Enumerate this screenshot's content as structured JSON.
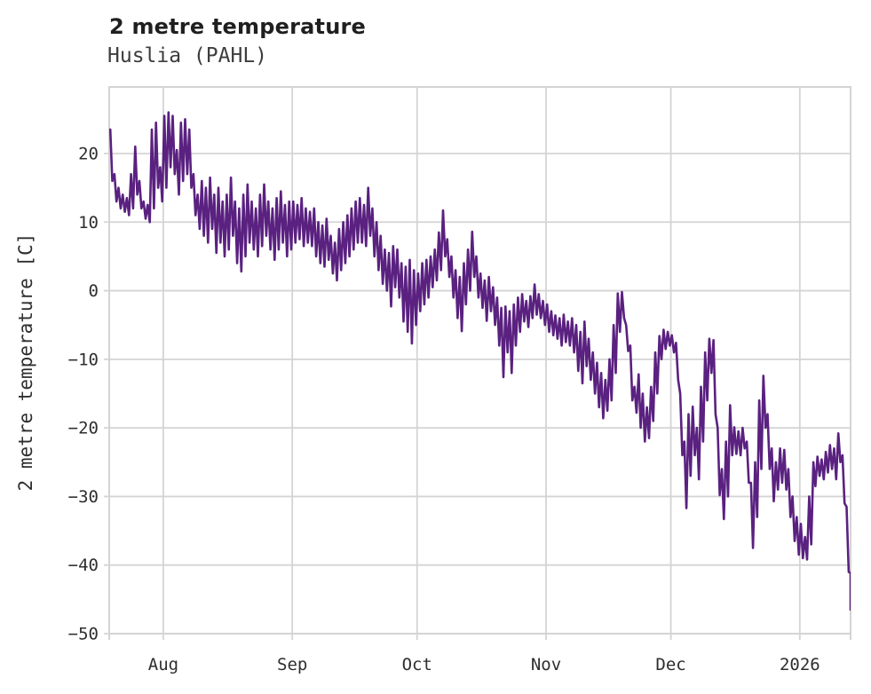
{
  "header": {
    "title": "2 metre temperature",
    "subtitle": "Huslia (PAHL)"
  },
  "chart_data": {
    "type": "line",
    "title": "2 metre temperature",
    "subtitle": "Huslia (PAHL)",
    "ylabel": "2 metre temperature [C]",
    "unit": "C",
    "legend": "none",
    "grid": true,
    "x_axis": {
      "tick_labels": [
        "Aug",
        "Sep",
        "Oct",
        "Nov",
        "Dec",
        "2026"
      ],
      "tick_day_offsets": [
        13,
        44,
        74,
        105,
        135,
        166
      ],
      "range_days": [
        0,
        178.2
      ]
    },
    "y_axis": {
      "ticks": [
        20,
        10,
        0,
        -10,
        -20,
        -30,
        -40,
        -50
      ],
      "range": [
        -50,
        29.7
      ]
    },
    "colors": {
      "line": "#5a2180",
      "grid": "#d4d4d4",
      "title_text": "#1f1f1f",
      "subtitle_text": "#3d3d3d",
      "tick_text": "#2e2e2e"
    },
    "series": [
      {
        "name": "2 metre temperature",
        "encoding": "[day_index, daily_high_C, daily_low_C]; day 0 is first plotted day, Aug tick at day 13",
        "daily_hi_lo": [
          [
            0,
            23.5,
            16
          ],
          [
            1,
            17,
            13
          ],
          [
            2,
            15,
            12
          ],
          [
            3,
            14,
            11.5
          ],
          [
            4,
            13.5,
            11
          ],
          [
            5,
            17,
            12
          ],
          [
            6,
            21,
            14
          ],
          [
            7,
            16,
            12
          ],
          [
            8,
            13,
            10.5
          ],
          [
            9,
            12.5,
            10
          ],
          [
            10,
            23.5,
            12
          ],
          [
            11,
            24.5,
            15
          ],
          [
            12,
            18,
            13
          ],
          [
            13,
            25.5,
            15
          ],
          [
            14,
            26,
            18
          ],
          [
            15,
            25.5,
            17
          ],
          [
            16,
            20.5,
            14
          ],
          [
            17,
            24.5,
            16
          ],
          [
            18,
            25,
            17
          ],
          [
            19,
            23.5,
            15
          ],
          [
            20,
            17,
            11
          ],
          [
            21,
            14,
            9
          ],
          [
            22,
            16,
            8
          ],
          [
            23,
            15,
            7
          ],
          [
            24,
            16.5,
            9
          ],
          [
            25,
            14,
            5.5
          ],
          [
            26,
            15,
            7
          ],
          [
            27,
            13,
            5
          ],
          [
            28,
            14,
            6
          ],
          [
            29,
            16.5,
            8
          ],
          [
            30,
            13,
            4
          ],
          [
            31,
            12,
            2.8
          ],
          [
            32,
            14,
            5
          ],
          [
            33,
            15.5,
            7
          ],
          [
            34,
            13,
            6
          ],
          [
            35,
            12,
            5
          ],
          [
            36,
            14,
            6.5
          ],
          [
            37,
            15.5,
            8
          ],
          [
            38,
            13,
            6
          ],
          [
            39,
            12,
            4.5
          ],
          [
            40,
            13.5,
            6
          ],
          [
            41,
            14.5,
            7
          ],
          [
            42,
            12.5,
            5
          ],
          [
            43,
            13,
            6
          ],
          [
            44,
            13,
            7
          ],
          [
            45,
            12.5,
            7.5
          ],
          [
            46,
            13.5,
            6.5
          ],
          [
            47,
            12,
            7
          ],
          [
            48,
            11.5,
            6.5
          ],
          [
            49,
            12,
            5
          ],
          [
            50,
            10,
            4
          ],
          [
            51,
            9.5,
            3.5
          ],
          [
            52,
            10.5,
            4.5
          ],
          [
            53,
            8,
            2.5
          ],
          [
            54,
            7,
            1.5
          ],
          [
            55,
            9,
            3
          ],
          [
            56,
            10,
            4
          ],
          [
            57,
            11,
            5
          ],
          [
            58,
            12,
            6
          ],
          [
            59,
            13,
            7
          ],
          [
            60,
            13.5,
            7
          ],
          [
            61,
            12.5,
            6.5
          ],
          [
            62,
            15,
            8
          ],
          [
            63,
            12,
            5
          ],
          [
            64,
            10,
            3
          ],
          [
            65,
            8,
            1
          ],
          [
            66,
            6,
            0
          ],
          [
            67,
            5.5,
            -2.3
          ],
          [
            68,
            6.5,
            0.5
          ],
          [
            69,
            6,
            -1
          ],
          [
            70,
            4,
            -4.5
          ],
          [
            71,
            3.5,
            -6
          ],
          [
            72,
            4.5,
            -7.7
          ],
          [
            73,
            3,
            -5
          ],
          [
            74,
            2.5,
            -3
          ],
          [
            75,
            4,
            -2
          ],
          [
            76,
            4.5,
            -1
          ],
          [
            77,
            5,
            0.5
          ],
          [
            78,
            6,
            1.5
          ],
          [
            79,
            8.5,
            3
          ],
          [
            80,
            11.7,
            5
          ],
          [
            81,
            7.5,
            2
          ],
          [
            82,
            5,
            -1
          ],
          [
            83,
            3,
            -4
          ],
          [
            84,
            2,
            -5.9
          ],
          [
            85,
            4,
            -2
          ],
          [
            86,
            6,
            0
          ],
          [
            87,
            8.6,
            2
          ],
          [
            88,
            5,
            -1
          ],
          [
            89,
            2.5,
            -2.5
          ],
          [
            90,
            1.5,
            -4.4
          ],
          [
            91,
            2,
            -3
          ],
          [
            92,
            0.5,
            -5
          ],
          [
            93,
            -1,
            -8
          ],
          [
            94,
            -2.5,
            -12.6
          ],
          [
            95,
            -2.3,
            -9
          ],
          [
            96,
            -3,
            -12
          ],
          [
            97,
            -2,
            -8
          ],
          [
            98,
            -1,
            -6
          ],
          [
            99,
            -0.5,
            -4.5
          ],
          [
            100,
            -1.5,
            -5.3
          ],
          [
            101,
            -0.8,
            -4
          ],
          [
            102,
            0.9,
            -3.5
          ],
          [
            103,
            -0.5,
            -4
          ],
          [
            104,
            -1.5,
            -5
          ],
          [
            105,
            -2,
            -6
          ],
          [
            106,
            -3,
            -6.5
          ],
          [
            107,
            -3.6,
            -7
          ],
          [
            108,
            -4,
            -8
          ],
          [
            109,
            -3.5,
            -7.5
          ],
          [
            110,
            -4.5,
            -8
          ],
          [
            111,
            -4,
            -9
          ],
          [
            112,
            -5,
            -11.7
          ],
          [
            113,
            -6,
            -13.5
          ],
          [
            114,
            -4.5,
            -11
          ],
          [
            115,
            -7,
            -13
          ],
          [
            116,
            -9,
            -15
          ],
          [
            117,
            -10.5,
            -17
          ],
          [
            118,
            -12,
            -18.6
          ],
          [
            119,
            -13,
            -17.5
          ],
          [
            120,
            -10,
            -16
          ],
          [
            121,
            -5,
            -12
          ],
          [
            122,
            -0.4,
            -6
          ],
          [
            123,
            -0.2,
            -4
          ],
          [
            124,
            -5,
            -8.8
          ],
          [
            125,
            -8,
            -16
          ],
          [
            126,
            -14,
            -17.8
          ],
          [
            127,
            -12.2,
            -20
          ],
          [
            128,
            -15,
            -22
          ],
          [
            129,
            -17,
            -21.5
          ],
          [
            130,
            -14,
            -19
          ],
          [
            131,
            -9,
            -15
          ],
          [
            132,
            -6.6,
            -10
          ],
          [
            133,
            -5.7,
            -8.5
          ],
          [
            134,
            -6,
            -8
          ],
          [
            135,
            -6.5,
            -9
          ],
          [
            136,
            -7.6,
            -13
          ],
          [
            137,
            -15,
            -24
          ],
          [
            138,
            -22,
            -31.7
          ],
          [
            139,
            -18,
            -27
          ],
          [
            140,
            -16.9,
            -24
          ],
          [
            141,
            -20,
            -27.5
          ],
          [
            142,
            -14,
            -22
          ],
          [
            143,
            -9,
            -16
          ],
          [
            144,
            -7,
            -12
          ],
          [
            145,
            -7.2,
            -18
          ],
          [
            146,
            -20,
            -29.8
          ],
          [
            147,
            -26,
            -33.3
          ],
          [
            148,
            -22,
            -30
          ],
          [
            149,
            -16.7,
            -24
          ],
          [
            150,
            -19.9,
            -23.8
          ],
          [
            151,
            -20.5,
            -24
          ],
          [
            152,
            -20,
            -23
          ],
          [
            153,
            -22,
            -28
          ],
          [
            154,
            -28,
            -37.5
          ],
          [
            155,
            -25,
            -33
          ],
          [
            156,
            -16,
            -26
          ],
          [
            157,
            -12.4,
            -20
          ],
          [
            158,
            -18,
            -26
          ],
          [
            159,
            -23,
            -30.7
          ],
          [
            160,
            -25,
            -29
          ],
          [
            161,
            -23,
            -28
          ],
          [
            162,
            -23.2,
            -29
          ],
          [
            163,
            -26,
            -33
          ],
          [
            164,
            -30,
            -36.5
          ],
          [
            165,
            -33,
            -38.5
          ],
          [
            166,
            -34,
            -39
          ],
          [
            167,
            -35.9,
            -39.2
          ],
          [
            168,
            -30,
            -37
          ],
          [
            169,
            -25,
            -28.5
          ],
          [
            170,
            -24.2,
            -27
          ],
          [
            171,
            -24.6,
            -27.5
          ],
          [
            172,
            -23.5,
            -26.5
          ],
          [
            173,
            -22.5,
            -26
          ],
          [
            174,
            -23,
            -27.5
          ],
          [
            175,
            -20.8,
            -25
          ],
          [
            176,
            -24,
            -31
          ],
          [
            177,
            -31.5,
            -41
          ],
          [
            178,
            -41.2,
            -46.5
          ]
        ]
      }
    ]
  }
}
